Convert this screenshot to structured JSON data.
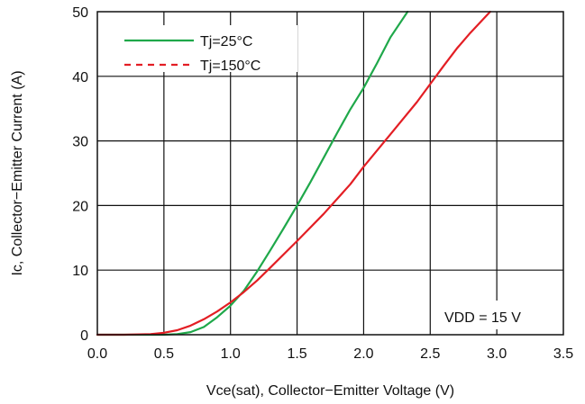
{
  "chart_data": {
    "type": "line",
    "title": "",
    "xlabel": "Vce(sat), Collector−Emitter Voltage (V)",
    "ylabel": "Ic, Collector−Emitter Current (A)",
    "xlim": [
      0,
      3.5
    ],
    "ylim": [
      0,
      50
    ],
    "grid": true,
    "legend_position": "top-left",
    "xticks": [
      0.0,
      0.5,
      1.0,
      1.5,
      2.0,
      2.5,
      3.0,
      3.5
    ],
    "xtick_labels": [
      "0.0",
      "0.5",
      "1.0",
      "1.5",
      "2.0",
      "2.5",
      "3.0",
      "3.5"
    ],
    "yticks": [
      0,
      10,
      20,
      30,
      40,
      50
    ],
    "ytick_labels": [
      "0",
      "10",
      "20",
      "30",
      "40",
      "50"
    ],
    "annotation": "VDD = 15 V",
    "series": [
      {
        "name": "Tj=25°C",
        "color": "#1fa84a",
        "dash": "solid",
        "x": [
          0.0,
          0.3,
          0.5,
          0.6,
          0.7,
          0.8,
          0.9,
          1.0,
          1.1,
          1.2,
          1.3,
          1.4,
          1.5,
          1.6,
          1.7,
          1.8,
          1.9,
          2.0,
          2.1,
          2.2,
          2.33
        ],
        "y": [
          0.0,
          0.0,
          0.0,
          0.1,
          0.4,
          1.2,
          2.7,
          4.5,
          6.8,
          9.8,
          13.1,
          16.5,
          20.0,
          23.6,
          27.4,
          31.2,
          34.9,
          38.2,
          42.0,
          46.0,
          50.0
        ]
      },
      {
        "name": "Tj=150°C",
        "color": "#e31e24",
        "dash": "dashed",
        "x": [
          0.0,
          0.2,
          0.4,
          0.5,
          0.6,
          0.7,
          0.8,
          0.9,
          1.0,
          1.1,
          1.2,
          1.3,
          1.5,
          1.7,
          1.9,
          2.0,
          2.2,
          2.4,
          2.5,
          2.6,
          2.7,
          2.8,
          2.95
        ],
        "y": [
          0.0,
          0.0,
          0.1,
          0.3,
          0.7,
          1.4,
          2.4,
          3.6,
          5.0,
          6.6,
          8.4,
          10.4,
          14.5,
          18.7,
          23.3,
          26.0,
          31.0,
          36.0,
          38.8,
          41.6,
          44.3,
          46.7,
          50.0
        ]
      }
    ]
  }
}
